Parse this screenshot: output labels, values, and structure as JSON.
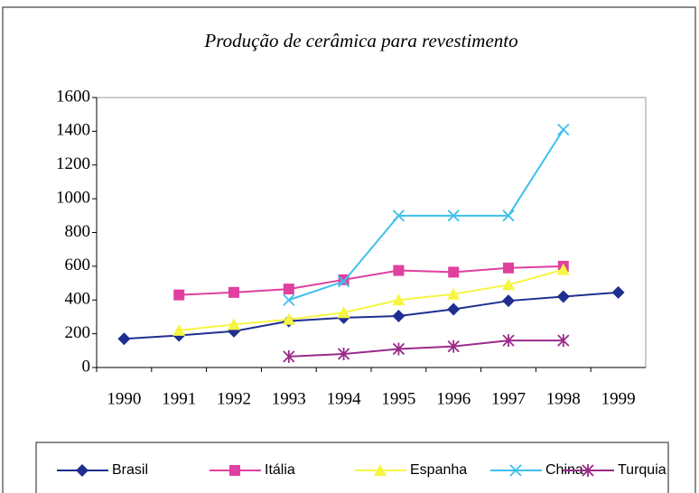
{
  "chart_data": {
    "type": "line",
    "title": "Produção de cerâmica para revestimento",
    "categories": [
      "1990",
      "1991",
      "1992",
      "1993",
      "1994",
      "1995",
      "1996",
      "1997",
      "1998",
      "1999"
    ],
    "ylim": [
      0,
      1600
    ],
    "yticks": [
      0,
      200,
      400,
      600,
      800,
      1000,
      1200,
      1400,
      1600
    ],
    "legend": "bottom",
    "series": [
      {
        "name": "Brasil",
        "color": "#1f2f8f",
        "marker": "diamond",
        "values": [
          170,
          190,
          215,
          275,
          295,
          305,
          345,
          395,
          420,
          445
        ]
      },
      {
        "name": "Itália",
        "color": "#e040a0",
        "marker": "square",
        "values": [
          null,
          430,
          445,
          465,
          520,
          575,
          565,
          590,
          600,
          null
        ]
      },
      {
        "name": "Espanha",
        "color": "#f5f542",
        "marker": "triangle",
        "values": [
          null,
          220,
          255,
          285,
          325,
          400,
          435,
          490,
          580,
          null
        ]
      },
      {
        "name": "China",
        "color": "#3fc0ec",
        "marker": "x",
        "values": [
          null,
          null,
          null,
          400,
          510,
          900,
          900,
          900,
          1410,
          null
        ]
      },
      {
        "name": "Turquia",
        "color": "#9a2a8a",
        "marker": "star",
        "values": [
          null,
          null,
          null,
          65,
          80,
          110,
          125,
          160,
          160,
          null
        ]
      }
    ]
  }
}
